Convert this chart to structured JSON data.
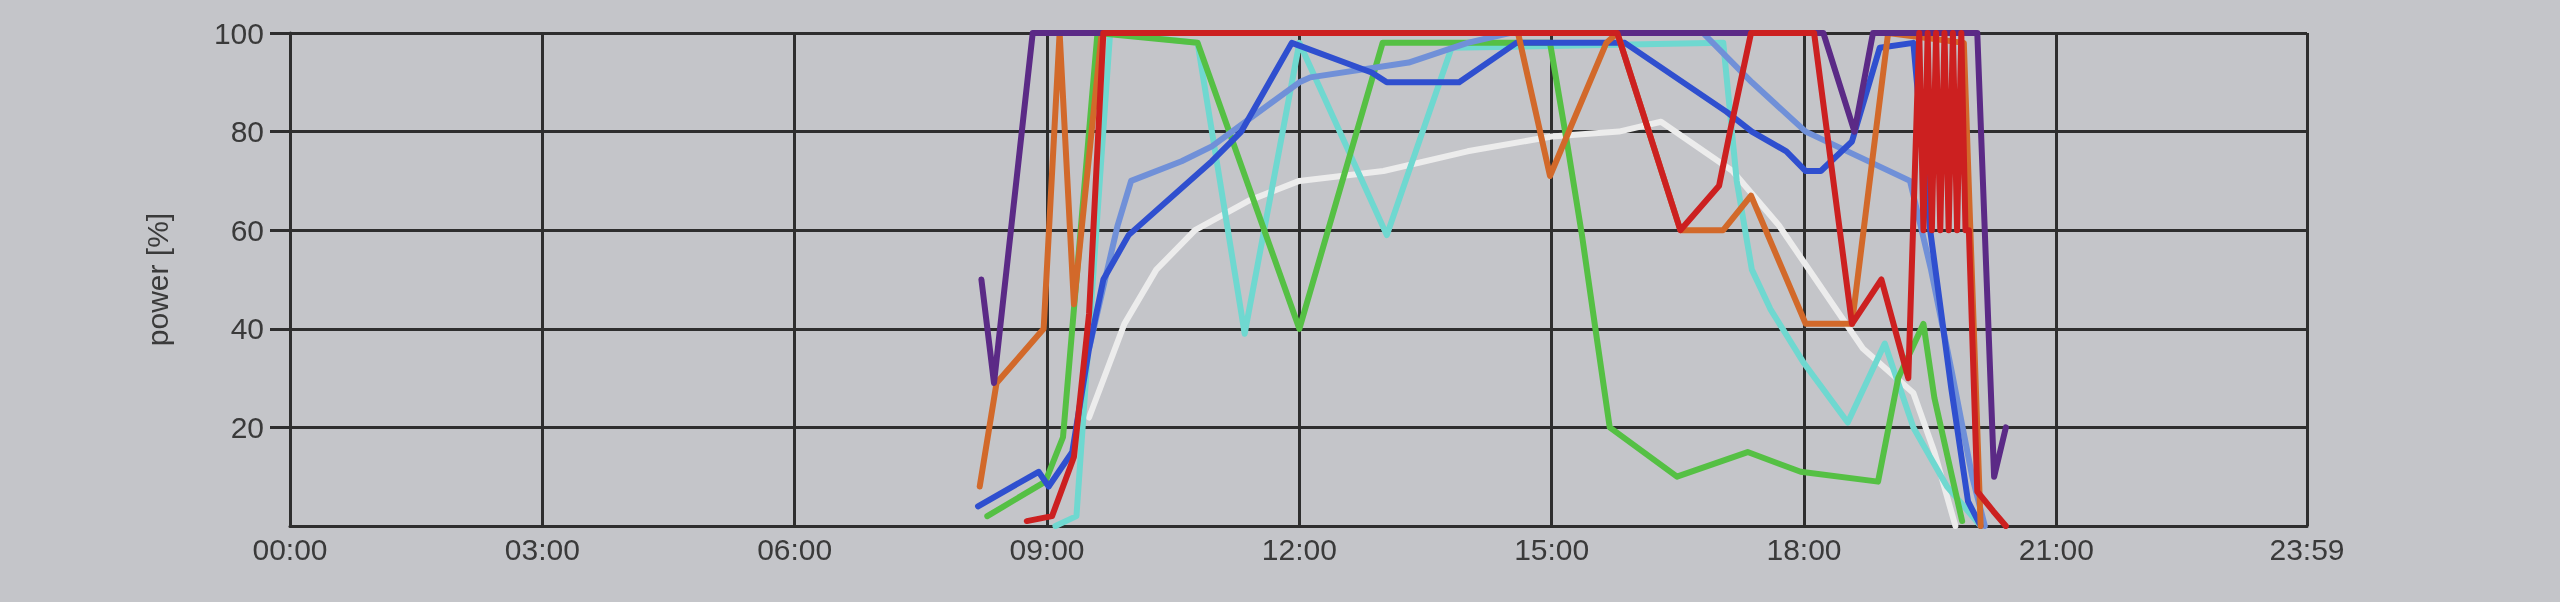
{
  "chart_data": {
    "type": "line",
    "ylabel": "power [%]",
    "xlim": [
      0,
      23.98
    ],
    "xticks": [
      {
        "value": 0,
        "label": "00:00"
      },
      {
        "value": 3,
        "label": "03:00"
      },
      {
        "value": 6,
        "label": "06:00"
      },
      {
        "value": 9,
        "label": "09:00"
      },
      {
        "value": 12,
        "label": "12:00"
      },
      {
        "value": 15,
        "label": "15:00"
      },
      {
        "value": 18,
        "label": "18:00"
      },
      {
        "value": 21,
        "label": "21:00"
      },
      {
        "value": 23.98,
        "label": "23:59"
      }
    ],
    "ylim": [
      0,
      100
    ],
    "yticks": [
      20,
      40,
      60,
      80,
      100
    ],
    "grid": true,
    "marker": "none",
    "line_style": "solid",
    "series": [
      {
        "color": "#ececec",
        "x": [
          9.5,
          9.92,
          10.3,
          10.76,
          11.4,
          12.0,
          13.0,
          14.0,
          15.0,
          15.8,
          16.3,
          17.15,
          17.7,
          18.7,
          19.3,
          19.55,
          19.8
        ],
        "values": [
          22,
          41,
          52,
          60,
          66,
          70,
          72,
          76,
          79,
          80,
          82,
          72,
          61,
          36,
          27,
          15,
          0
        ]
      },
      {
        "color": "#6fd8d0",
        "x": [
          9.1,
          9.35,
          9.75,
          10.79,
          11.35,
          12.0,
          13.04,
          13.81,
          17.04,
          17.2,
          17.38,
          17.6,
          18.0,
          18.52,
          18.96,
          19.3,
          19.7,
          20.1
        ],
        "values": [
          0,
          2,
          100,
          98,
          39,
          98,
          59,
          97,
          98,
          70,
          52,
          44,
          33,
          21,
          37,
          20,
          8,
          0
        ]
      },
      {
        "color": "#55c044",
        "x": [
          8.29,
          8.98,
          9.19,
          9.6,
          10.79,
          12.0,
          12.99,
          14.98,
          15.19,
          15.36,
          15.52,
          15.69,
          16.49,
          17.33,
          17.96,
          18.88,
          19.12,
          19.42,
          19.55,
          19.76,
          19.88
        ],
        "values": [
          2,
          9,
          18,
          100,
          98,
          40,
          98,
          98,
          77,
          59,
          40,
          20,
          10,
          15,
          11,
          9,
          30,
          41,
          26,
          10,
          1
        ]
      },
      {
        "color": "#7090d8",
        "x": [
          9.5,
          9.84,
          10.0,
          10.6,
          10.96,
          12.0,
          12.13,
          13.3,
          14.0,
          14.5,
          16.8,
          17.38,
          18.02,
          19.26,
          19.51,
          19.76,
          20.0,
          20.15
        ],
        "values": [
          36,
          61,
          70,
          74,
          77,
          90,
          91,
          94,
          98,
          100,
          100,
          90,
          80,
          70,
          52,
          31,
          10,
          0
        ]
      },
      {
        "color": "#2f4fcf",
        "x": [
          8.18,
          8.9,
          9.02,
          9.3,
          9.5,
          9.67,
          9.97,
          10.96,
          11.31,
          11.91,
          12.86,
          13.04,
          13.9,
          14.58,
          15.87,
          17.08,
          17.38,
          17.79,
          18.02,
          18.2,
          18.57,
          18.9,
          19.3,
          19.5,
          19.75,
          19.95,
          20.1
        ],
        "values": [
          4,
          11,
          8,
          15,
          36,
          50,
          59,
          74,
          80,
          98,
          92,
          90,
          90,
          98,
          98,
          84,
          80,
          76,
          72,
          72,
          78,
          97,
          98,
          60,
          28,
          5,
          0
        ]
      },
      {
        "color": "#d2692a",
        "x": [
          8.2,
          8.4,
          8.96,
          9.15,
          9.32,
          9.65,
          14.6,
          14.98,
          15.65,
          15.78,
          16.53,
          17.04,
          17.37,
          18.02,
          18.57,
          19.0,
          19.9,
          20.1
        ],
        "values": [
          8,
          29,
          40,
          100,
          45,
          100,
          100,
          71,
          98,
          100,
          60,
          60,
          67,
          41,
          41,
          100,
          98,
          0
        ]
      },
      {
        "color": "#5b2a86",
        "x": [
          8.22,
          8.37,
          8.83,
          18.23,
          18.6,
          18.82,
          20.06,
          20.26,
          20.4
        ],
        "values": [
          50,
          29,
          100,
          100,
          80,
          100,
          100,
          10,
          20
        ]
      },
      {
        "color": "#cc2020",
        "x": [
          8.76,
          9.06,
          9.32,
          9.5,
          9.67,
          15.78,
          16.53,
          16.99,
          17.12,
          17.37,
          18.12,
          18.57,
          18.92,
          19.24,
          19.37,
          19.42,
          19.47,
          19.52,
          19.57,
          19.62,
          19.67,
          19.72,
          19.77,
          19.82,
          19.87,
          19.92,
          19.96,
          20.06,
          20.25,
          20.4
        ],
        "values": [
          1,
          2,
          14,
          43,
          100,
          100,
          60,
          69,
          80,
          100,
          100,
          41,
          50,
          30,
          100,
          60,
          100,
          60,
          100,
          60,
          100,
          60,
          100,
          60,
          100,
          60,
          60,
          7,
          3,
          0
        ]
      }
    ]
  }
}
